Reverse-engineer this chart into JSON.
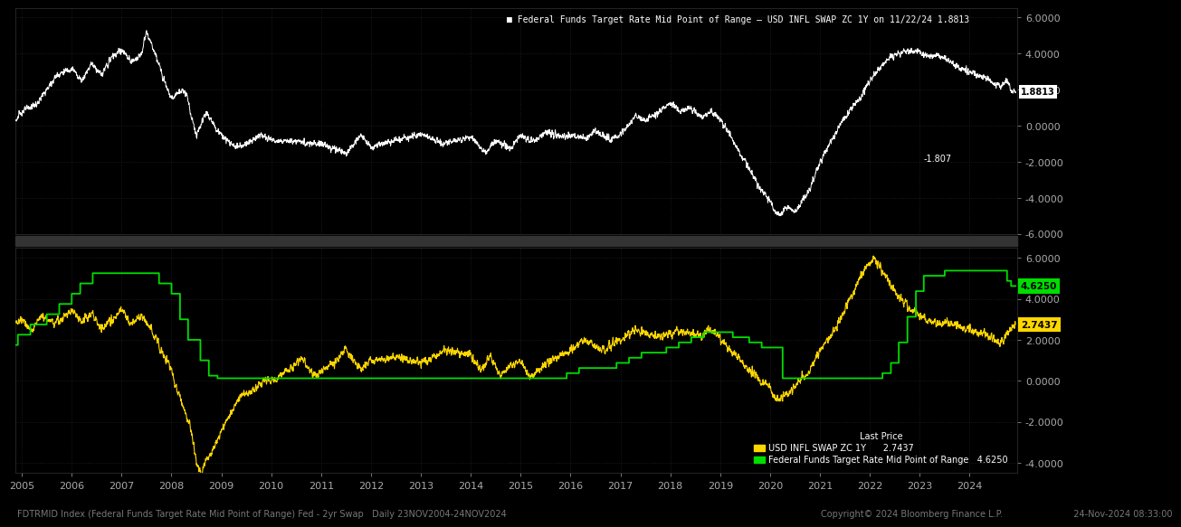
{
  "background_color": "#000000",
  "grid_color": "#1a1a1a",
  "grid_style": "dotted",
  "top_panel": {
    "legend_text": "Federal Funds Target Rate Mid Point of Range – USD INFL SWAP ZC 1Y on 11/22/24 1.8813",
    "line_color": "#ffffff",
    "ylim": [
      -6.0,
      6.5
    ],
    "yticks": [
      -6.0,
      -4.0,
      -2.0,
      0.0,
      2.0,
      4.0,
      6.0
    ],
    "last_value": 1.8813,
    "annotation_label": "1.8813",
    "annotation_arrow": "-1.807"
  },
  "bottom_panel": {
    "gold_color": "#FFD700",
    "green_color": "#00DD00",
    "ylim": [
      -4.5,
      6.5
    ],
    "yticks": [
      -4.0,
      -2.0,
      0.0,
      2.0,
      4.0,
      6.0
    ],
    "gold_last": 2.7437,
    "green_last": 4.625,
    "legend_gold": "USD INFL SWAP ZC 1Y",
    "legend_green": "Federal Funds Target Rate Mid Point of Range",
    "legend_gold_val": "2.7437",
    "legend_green_val": "4.6250",
    "legend_title": "Last Price"
  },
  "x_years": [
    2005,
    2006,
    2007,
    2008,
    2009,
    2010,
    2011,
    2012,
    2013,
    2014,
    2015,
    2016,
    2017,
    2018,
    2019,
    2020,
    2021,
    2022,
    2023,
    2024
  ],
  "footer_left": "FDTRMID Index (Federal Funds Target Rate Mid Point of Range) Fed - 2yr Swap   Daily 23NOV2004-24NOV2024",
  "footer_right": "Copyright© 2024 Bloomberg Finance L.P.                         24-Nov-2024 08:33:00",
  "tick_label_color": "#aaaaaa",
  "font_size_axis": 8,
  "font_size_footer": 7
}
